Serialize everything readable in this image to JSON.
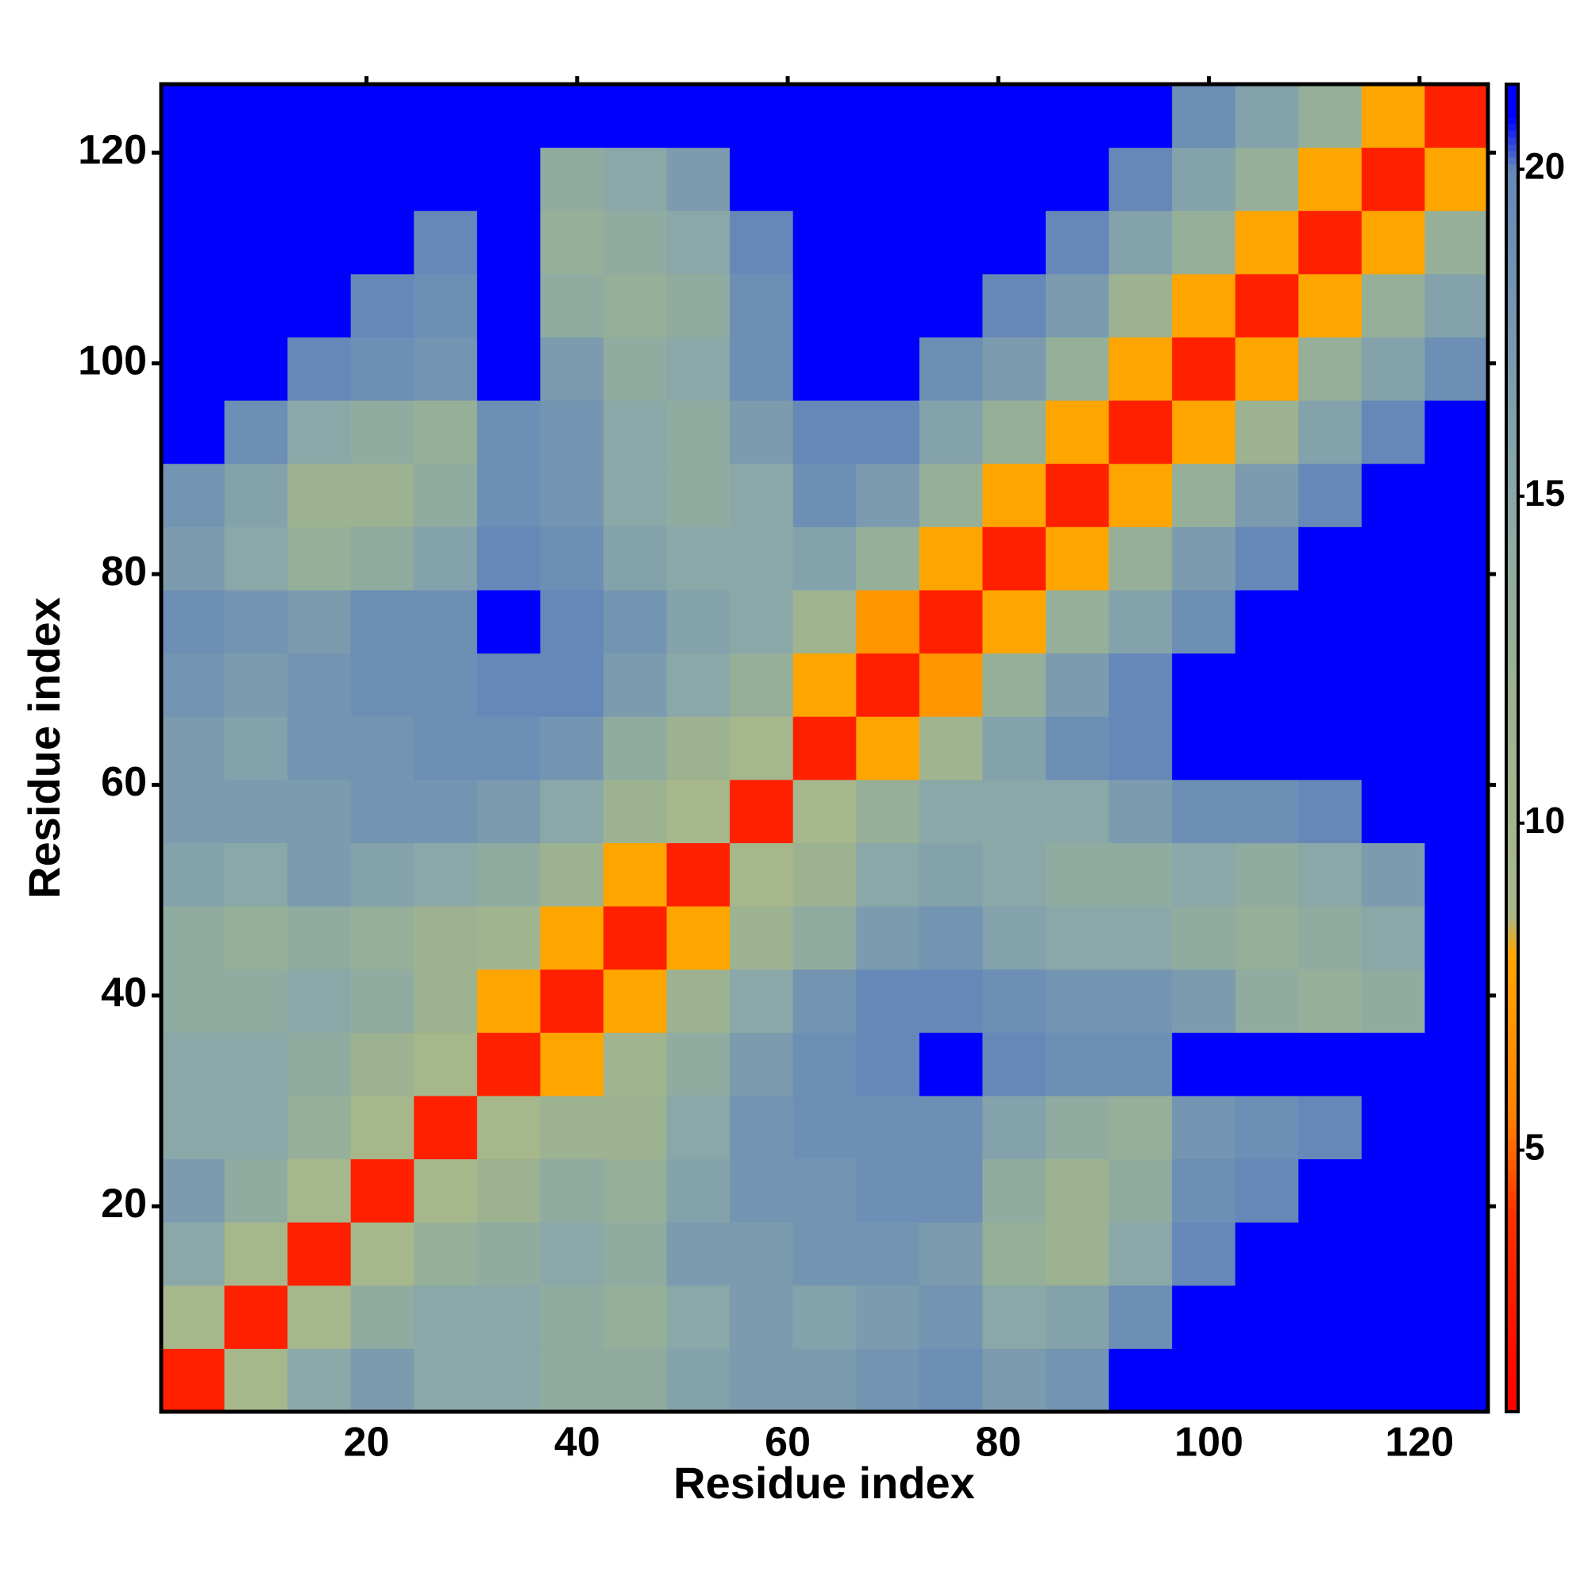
{
  "chart_data": {
    "type": "heatmap",
    "x_label": "Residue index",
    "y_label": "Residue index",
    "xbins": [
      0.5,
      6.5,
      12.5,
      18.5,
      24.5,
      30.5,
      36.5,
      42.5,
      48.5,
      54.5,
      60.5,
      66.5,
      72.5,
      78.5,
      84.5,
      90.5,
      96.5,
      102.5,
      108.5,
      114.5,
      120.5,
      126.5
    ],
    "ybins": [
      0.5,
      6.5,
      12.5,
      18.5,
      24.5,
      30.5,
      36.5,
      42.5,
      48.5,
      54.5,
      60.5,
      66.5,
      72.5,
      78.5,
      84.5,
      90.5,
      96.5,
      102.5,
      108.5,
      114.5,
      120.5,
      126.5
    ],
    "z": [
      [
        3,
        9,
        15,
        17,
        15,
        15,
        14,
        14,
        16,
        17,
        17,
        18,
        19,
        17,
        18,
        21,
        21,
        21,
        21,
        21,
        21
      ],
      [
        9,
        3,
        9,
        14,
        15,
        15,
        14,
        13,
        15,
        17,
        16,
        17,
        18,
        15,
        16,
        19,
        21,
        21,
        21,
        21,
        21
      ],
      [
        15,
        9,
        3,
        9,
        13,
        14,
        15,
        14,
        17,
        17,
        18,
        18,
        17,
        13,
        12,
        15,
        20,
        21,
        21,
        21,
        21
      ],
      [
        17,
        14,
        9,
        3,
        9,
        12,
        14,
        13,
        16,
        18,
        18,
        19,
        19,
        14,
        12,
        14,
        19,
        20,
        21,
        21,
        21
      ],
      [
        15,
        15,
        13,
        9,
        3,
        9,
        12,
        12,
        15,
        18,
        19,
        19,
        19,
        16,
        14,
        13,
        18,
        19,
        20,
        21,
        21
      ],
      [
        15,
        15,
        14,
        12,
        9,
        3,
        8,
        11,
        14,
        17,
        19,
        20,
        21,
        20,
        19,
        19,
        21,
        21,
        21,
        21,
        21
      ],
      [
        14,
        14,
        15,
        14,
        12,
        8,
        3,
        8,
        12,
        15,
        18,
        20,
        20,
        19,
        18,
        18,
        17,
        14,
        13,
        14,
        21
      ],
      [
        14,
        13,
        14,
        13,
        12,
        11,
        8,
        3,
        8,
        12,
        14,
        17,
        18,
        16,
        15,
        15,
        14,
        13,
        14,
        15,
        21
      ],
      [
        16,
        15,
        17,
        16,
        15,
        14,
        12,
        8,
        3,
        9,
        12,
        15,
        16,
        15,
        14,
        14,
        15,
        14,
        15,
        17,
        21
      ],
      [
        17,
        17,
        17,
        18,
        18,
        17,
        15,
        12,
        9,
        3,
        9,
        13,
        15,
        15,
        15,
        17,
        19,
        19,
        20,
        21,
        21
      ],
      [
        17,
        16,
        18,
        18,
        19,
        19,
        18,
        14,
        12,
        9,
        3,
        8,
        11,
        16,
        19,
        20,
        21,
        21,
        21,
        21,
        21
      ],
      [
        18,
        17,
        18,
        19,
        19,
        20,
        20,
        17,
        15,
        13,
        8,
        3,
        7,
        13,
        17,
        20,
        21,
        21,
        21,
        21,
        21
      ],
      [
        19,
        18,
        17,
        19,
        19,
        21,
        20,
        18,
        16,
        15,
        11,
        7,
        3,
        8,
        13,
        16,
        19,
        21,
        21,
        21,
        21
      ],
      [
        17,
        15,
        13,
        14,
        16,
        20,
        19,
        16,
        15,
        15,
        16,
        13,
        8,
        3,
        8,
        13,
        17,
        20,
        21,
        21,
        21
      ],
      [
        18,
        16,
        12,
        12,
        14,
        19,
        18,
        15,
        14,
        15,
        19,
        17,
        13,
        8,
        3,
        8,
        13,
        17,
        20,
        21,
        21
      ],
      [
        21,
        19,
        15,
        14,
        13,
        19,
        18,
        15,
        14,
        17,
        20,
        20,
        16,
        13,
        8,
        3,
        8,
        12,
        16,
        20,
        21
      ],
      [
        21,
        21,
        20,
        19,
        18,
        21,
        17,
        14,
        15,
        19,
        21,
        21,
        19,
        17,
        13,
        8,
        3,
        8,
        13,
        16,
        19
      ],
      [
        21,
        21,
        21,
        20,
        19,
        21,
        14,
        13,
        14,
        19,
        21,
        21,
        21,
        20,
        17,
        12,
        8,
        3,
        8,
        13,
        16
      ],
      [
        21,
        21,
        21,
        21,
        20,
        21,
        13,
        14,
        15,
        20,
        21,
        21,
        21,
        21,
        20,
        16,
        13,
        8,
        3,
        8,
        13
      ],
      [
        21,
        21,
        21,
        21,
        21,
        21,
        14,
        15,
        17,
        21,
        21,
        21,
        21,
        21,
        21,
        20,
        16,
        13,
        8,
        3,
        8
      ],
      [
        21,
        21,
        21,
        21,
        21,
        21,
        21,
        21,
        21,
        21,
        21,
        21,
        21,
        21,
        21,
        21,
        19,
        16,
        13,
        8,
        3
      ]
    ],
    "xlim": [
      0.5,
      126.5
    ],
    "ylim": [
      0.5,
      126.5
    ],
    "xticks": [
      20,
      40,
      60,
      80,
      100,
      120
    ],
    "yticks": [
      20,
      40,
      60,
      80,
      100,
      120
    ],
    "zlim": [
      1,
      21.3
    ],
    "zticks": [
      5,
      10,
      15,
      20
    ],
    "colorscale": [
      [
        1,
        "#ff0000"
      ],
      [
        4,
        "#ff3000"
      ],
      [
        5.5,
        "#ff8000"
      ],
      [
        8,
        "#ffa500"
      ],
      [
        8.6,
        "#a8b88c"
      ],
      [
        12,
        "#9cb290"
      ],
      [
        15,
        "#8aa8a8"
      ],
      [
        20,
        "#6688b8"
      ],
      [
        20.8,
        "#0000ff"
      ]
    ]
  }
}
